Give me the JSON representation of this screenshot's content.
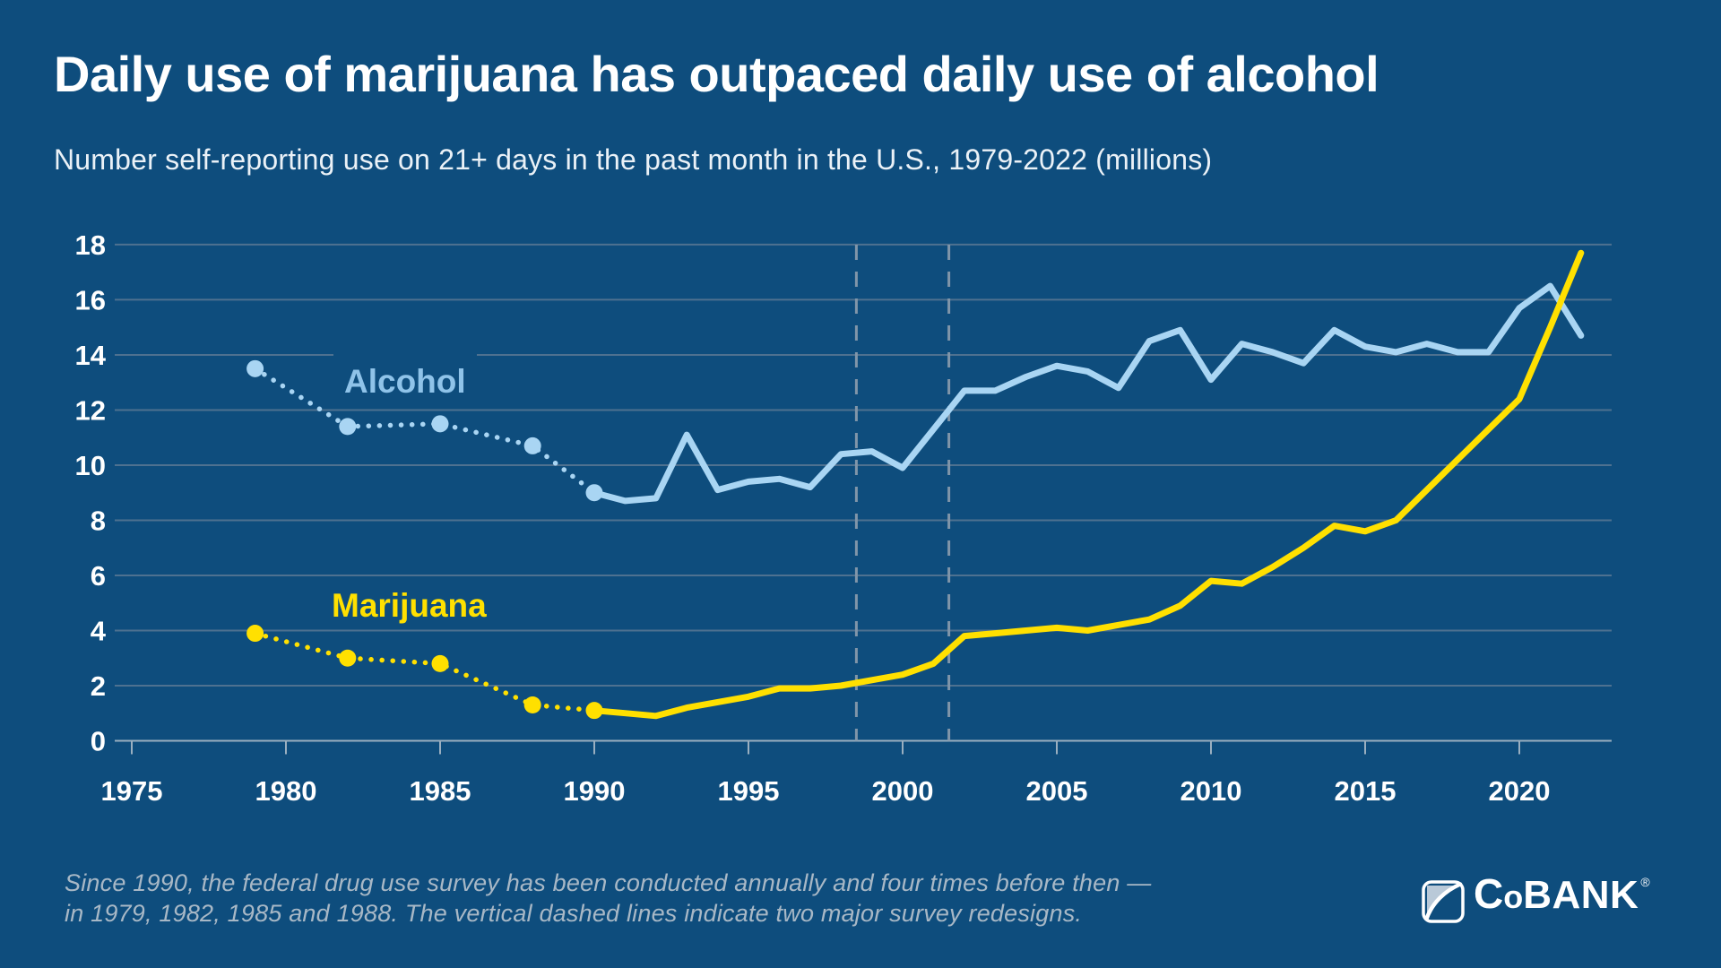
{
  "header": {
    "title": "Daily use of marijuana has outpaced daily use of alcohol",
    "subtitle": "Number self-reporting use on 21+ days in the past month in the U.S., 1979-2022 (millions)"
  },
  "colors": {
    "background": "#0E4D7D",
    "gridline": "#4E7190",
    "axis_line": "#9AAFC0",
    "dashed_line": "#8095A9",
    "alcohol_line": "#A9D5F3",
    "alcohol_label": "#8FC3E9",
    "marijuana_line": "#FFE000",
    "footnote_text": "#A8B8C6",
    "title_text": "#FFFFFF"
  },
  "chart_data": {
    "type": "line",
    "title": "Daily use of marijuana has outpaced daily use of alcohol",
    "subtitle": "Number self-reporting use on 21+ days in the past month in the U.S., 1979-2022 (millions)",
    "xlabel": "",
    "ylabel": "",
    "xlim": [
      1975,
      2023
    ],
    "ylim": [
      0,
      18
    ],
    "grid": true,
    "x_ticks": [
      1975,
      1980,
      1985,
      1990,
      1995,
      2000,
      2005,
      2010,
      2015,
      2020
    ],
    "y_ticks": [
      0,
      2,
      4,
      6,
      8,
      10,
      12,
      14,
      16,
      18
    ],
    "survey_redesign_lines_x": [
      1998.5,
      2001.5
    ],
    "series": [
      {
        "name": "Alcohol",
        "color": "#A9D5F3",
        "survey_years": [
          1979,
          1982,
          1985,
          1988,
          1990
        ],
        "survey_values": [
          13.5,
          11.4,
          11.5,
          10.7,
          9.0
        ],
        "annual_years": [
          1990,
          1991,
          1992,
          1993,
          1994,
          1995,
          1996,
          1997,
          1998,
          1999,
          2000,
          2001,
          2002,
          2003,
          2004,
          2005,
          2006,
          2007,
          2008,
          2009,
          2010,
          2011,
          2012,
          2013,
          2014,
          2015,
          2016,
          2017,
          2018,
          2019,
          2020,
          2021,
          2022
        ],
        "annual_values": [
          9.0,
          8.7,
          8.8,
          11.1,
          9.1,
          9.4,
          9.5,
          9.2,
          10.4,
          10.5,
          9.9,
          11.3,
          12.7,
          12.7,
          13.2,
          13.6,
          13.4,
          12.8,
          14.5,
          14.9,
          13.1,
          14.4,
          14.1,
          13.7,
          14.9,
          14.3,
          14.1,
          14.4,
          14.1,
          14.1,
          15.7,
          16.5,
          14.7
        ]
      },
      {
        "name": "Marijuana",
        "color": "#FFE000",
        "survey_years": [
          1979,
          1982,
          1985,
          1988,
          1990
        ],
        "survey_values": [
          3.9,
          3.0,
          2.8,
          1.3,
          1.1
        ],
        "annual_years": [
          1990,
          1991,
          1992,
          1993,
          1994,
          1995,
          1996,
          1997,
          1998,
          1999,
          2000,
          2001,
          2002,
          2003,
          2004,
          2005,
          2006,
          2007,
          2008,
          2009,
          2010,
          2011,
          2012,
          2013,
          2014,
          2015,
          2016,
          2017,
          2018,
          2019,
          2020,
          2021,
          2022
        ],
        "annual_values": [
          1.1,
          1.0,
          0.9,
          1.2,
          1.4,
          1.6,
          1.9,
          1.9,
          2.0,
          2.2,
          2.4,
          2.8,
          3.8,
          3.9,
          4.0,
          4.1,
          4.0,
          4.2,
          4.4,
          4.9,
          5.8,
          5.7,
          6.3,
          7.0,
          7.8,
          7.6,
          8.0,
          9.1,
          10.2,
          11.3,
          12.4,
          15.0,
          17.7
        ]
      }
    ],
    "legend_position": "inline-labels",
    "labels": {
      "alcohol": "Alcohol",
      "marijuana": "Marijuana"
    }
  },
  "footnote": {
    "line1": "Since 1990, the federal drug use survey has been conducted annually and four times before then —",
    "line2": "in 1979, 1982, 1985 and 1988. The vertical dashed lines indicate two major survey redesigns."
  },
  "logo": {
    "part1": "C",
    "part2": "o",
    "part3": "BANK",
    "reg_mark": "®"
  }
}
